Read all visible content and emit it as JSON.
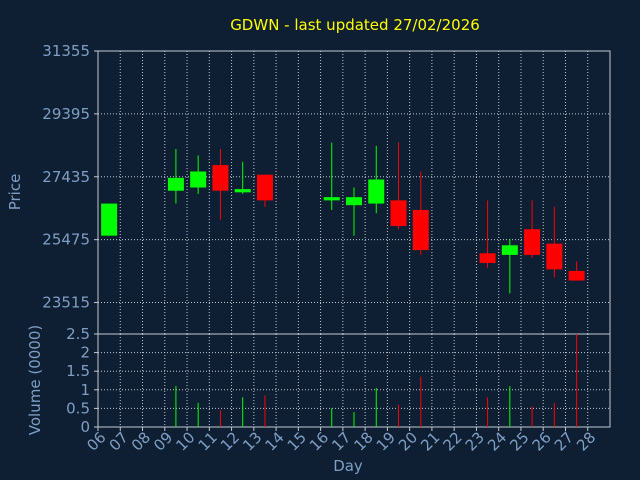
{
  "chart_data": {
    "type": "candlestick",
    "title": "GDWN - last updated 27/02/2026",
    "price_axis": {
      "label": "Price",
      "ticks": [
        23515,
        25475,
        27435,
        29395,
        31355
      ],
      "ylim": [
        22535,
        31355
      ]
    },
    "volume_axis": {
      "label": "Volume (0000)",
      "ticks": [
        "0",
        "0.5",
        "1",
        "1.5",
        "2",
        "2.5"
      ],
      "ylim": [
        0,
        2.5
      ]
    },
    "x_axis": {
      "label": "Day",
      "ticks": [
        "06",
        "07",
        "08",
        "09",
        "10",
        "11",
        "12",
        "13",
        "14",
        "15",
        "16",
        "17",
        "18",
        "19",
        "20",
        "21",
        "22",
        "23",
        "24",
        "25",
        "26",
        "27",
        "28"
      ]
    },
    "grid": true,
    "colors": {
      "up": "#00ff00",
      "down": "#ff0000",
      "axis_text": "#7e9fc4",
      "title": "#ffff00",
      "background": "#0f1f33"
    },
    "candles": [
      {
        "day": "06",
        "open": 25600,
        "close": 26600,
        "high": 26600,
        "low": 25600,
        "volume": 0.0
      },
      {
        "day": "09",
        "open": 27000,
        "close": 27400,
        "high": 28300,
        "low": 26600,
        "volume": 1.1
      },
      {
        "day": "10",
        "open": 27100,
        "close": 27600,
        "high": 28100,
        "low": 26900,
        "volume": 0.65
      },
      {
        "day": "11",
        "open": 27800,
        "close": 27000,
        "high": 28300,
        "low": 26100,
        "volume": 0.45
      },
      {
        "day": "12",
        "open": 26950,
        "close": 27050,
        "high": 27900,
        "low": 26900,
        "volume": 0.8
      },
      {
        "day": "13",
        "open": 27500,
        "close": 26700,
        "high": 27500,
        "low": 26500,
        "volume": 0.85
      },
      {
        "day": "16",
        "open": 26700,
        "close": 26800,
        "high": 28500,
        "low": 26400,
        "volume": 0.5
      },
      {
        "day": "17",
        "open": 26550,
        "close": 26800,
        "high": 27100,
        "low": 25600,
        "volume": 0.4
      },
      {
        "day": "18",
        "open": 26600,
        "close": 27350,
        "high": 28400,
        "low": 26300,
        "volume": 1.05
      },
      {
        "day": "19",
        "open": 26700,
        "close": 25900,
        "high": 28500,
        "low": 25800,
        "volume": 0.6
      },
      {
        "day": "20",
        "open": 26400,
        "close": 25150,
        "high": 27600,
        "low": 25000,
        "volume": 1.35
      },
      {
        "day": "23",
        "open": 25050,
        "close": 24750,
        "high": 26700,
        "low": 24600,
        "volume": 0.8
      },
      {
        "day": "24",
        "open": 25000,
        "close": 25300,
        "high": 25500,
        "low": 23800,
        "volume": 1.1
      },
      {
        "day": "25",
        "open": 25800,
        "close": 25000,
        "high": 26700,
        "low": 24900,
        "volume": 0.55
      },
      {
        "day": "26",
        "open": 25350,
        "close": 24550,
        "high": 26500,
        "low": 24300,
        "volume": 0.65
      },
      {
        "day": "27",
        "open": 24500,
        "close": 24200,
        "high": 24800,
        "low": 24200,
        "volume": 2.5
      }
    ]
  }
}
